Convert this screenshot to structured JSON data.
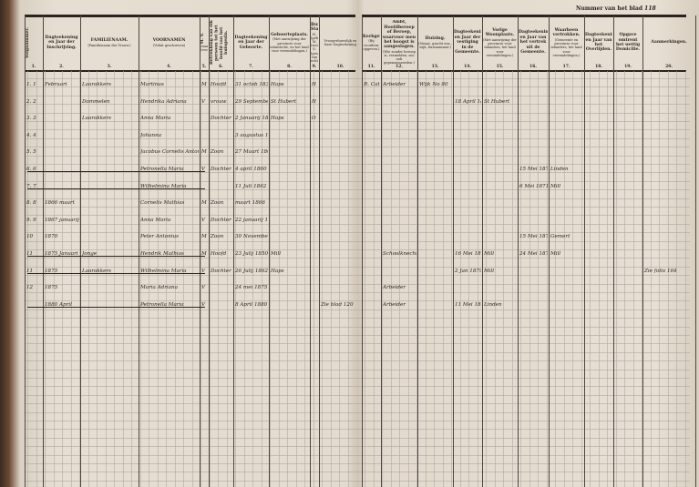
{
  "sheet_number_label": "Nummer van het blad",
  "sheet_number": "118",
  "headers": [
    {
      "n": "1.",
      "title": "Volgnummer.",
      "sub": ""
    },
    {
      "n": "2.",
      "title": "Dagteekening en Jaar der Inschrijving.",
      "sub": ""
    },
    {
      "n": "3.",
      "title": "FAMILIENAAM.",
      "sub": "(Familienaam der Vrouw.)"
    },
    {
      "n": "4.",
      "title": "VOORNAMEN",
      "sub": "(Voluit geschreven)"
    },
    {
      "n": "5.",
      "title": "M. V.",
      "sub": "(mannelijk) (vrouwelijk)"
    },
    {
      "n": "6.",
      "title": "Betrekking van elk persoon tot het hoofd van het huisgezin.",
      "sub": ""
    },
    {
      "n": "7.",
      "title": "Dagteekening en Jaar der Geboorte.",
      "sub": ""
    },
    {
      "n": "8.",
      "title": "Geboorteplaats.",
      "sub": "(Met aanwijzing der provincie voor inlandsche, en het land voor vreemdelingen.)"
    },
    {
      "n": "9.",
      "title": "Burgerlijke Staat.",
      "sub": "H. (gehuwd) W. (weduwnaar) S. (gescheiden van echt)"
    },
    {
      "n": "10.",
      "title": "",
      "sub": "Vroegerhuwelijk en hare Dagteekening"
    },
    {
      "n": "11.",
      "title": "Kerkgenootschap.",
      "sub": "(Bij voorkeur opgeven.)"
    },
    {
      "n": "12.",
      "title": "Ambt, Hoofdberoep of Beroep, waarvoor men het hoogst is aangeslagen.",
      "sub": "(Wie zonder beroep is, vermelden, zoo ook gepensioneerden.)"
    },
    {
      "n": "13.",
      "title": "Huizing.",
      "sub": "(Straat, gracht enz., wijk, huisnummer.)"
    },
    {
      "n": "14.",
      "title": "Dagteekening en Jaar der vestiging in de Gemeente.",
      "sub": ""
    },
    {
      "n": "15.",
      "title": "Vorige Woonplaats.",
      "sub": "(Met aanwijzing der provincie voor inlanders, het land voor vreemdelingen.)"
    },
    {
      "n": "16.",
      "title": "Dagteekening en Jaar van het vertrek uit de Gemeente.",
      "sub": ""
    },
    {
      "n": "17.",
      "title": "Waarheen vertrokken.",
      "sub": "(Gemeente en provincie voor inlanders, het land voor vreemdelingen.)"
    },
    {
      "n": "18.",
      "title": "Dagteekening en Jaar van het Overlijden.",
      "sub": ""
    },
    {
      "n": "19.",
      "title": "Opgave omtrent het wettig Domicilie.",
      "sub": ""
    },
    {
      "n": "20.",
      "title": "Aanmerkingen.",
      "sub": ""
    }
  ],
  "rows": [
    {
      "c": [
        "1. 1",
        "Februari",
        "Laarakkers",
        "Martinus",
        "M",
        "Hoofd",
        "31 octob 1836",
        "Haps",
        "H",
        "",
        "R. Cath",
        "Arbeider",
        "Wijk No 80",
        "",
        "",
        "",
        "",
        "",
        "",
        ""
      ],
      "struck": false
    },
    {
      "c": [
        "2. 2",
        "",
        "Dommelen",
        "Hendrika Adriana",
        "V",
        "vrouw",
        "29 September 1838",
        "St Hubert",
        "H",
        "",
        "",
        "",
        "",
        "18 April 1862",
        "St Hubert",
        "",
        "",
        "",
        "",
        ""
      ],
      "struck": false
    },
    {
      "c": [
        "3. 3",
        "",
        "Laarakkers",
        "Anna Maria",
        "",
        "Dochter",
        "2 Januarij 1865",
        "Haps",
        "O",
        "",
        "",
        "",
        "",
        "",
        "",
        "",
        "",
        "",
        "",
        ""
      ],
      "struck": false
    },
    {
      "c": [
        "4. 4",
        "",
        "",
        "Johanna",
        "",
        "",
        "3 augustus 1866",
        "",
        "",
        "",
        "",
        "",
        "",
        "",
        "",
        "",
        "",
        "",
        "",
        ""
      ],
      "struck": false
    },
    {
      "c": [
        "5. 5",
        "",
        "",
        "Jacobus Cornelis Antonius",
        "M",
        "Zoon",
        "27 Maart 1868",
        "",
        "",
        "",
        "",
        "",
        "",
        "",
        "",
        "",
        "",
        "",
        "",
        ""
      ],
      "struck": false
    },
    {
      "c": [
        "6. 6",
        "",
        "",
        "Petronella Maria",
        "V",
        "Dochter",
        "4 april 1860",
        "",
        "",
        "",
        "",
        "",
        "",
        "",
        "",
        "15 Mei 1878",
        "Linden",
        "",
        "",
        ""
      ],
      "struck": true
    },
    {
      "c": [
        "7. 7",
        "",
        "",
        "Wilhelmina Maria",
        "",
        "",
        "11 Juli 1862",
        "",
        "",
        "",
        "",
        "",
        "",
        "",
        "",
        "6 Mei 1871",
        "Mill",
        "",
        "",
        ""
      ],
      "struck": true
    },
    {
      "c": [
        "8. 8",
        "1866 maart",
        "",
        "Cornelis Mathias",
        "M",
        "Zoon",
        "maart 1866",
        "",
        "",
        "",
        "",
        "",
        "",
        "",
        "",
        "",
        "",
        "",
        "",
        ""
      ],
      "struck": false
    },
    {
      "c": [
        "9. 9",
        "1867 januarij 22",
        "",
        "Anna Maria",
        "V",
        "Dochter",
        "22 januarij 1867",
        "",
        "",
        "",
        "",
        "",
        "",
        "",
        "",
        "",
        "",
        "",
        "",
        ""
      ],
      "struck": false
    },
    {
      "c": [
        "10",
        "1870",
        "",
        "Peter Antonius",
        "M",
        "Zoon",
        "30 November 1870",
        "",
        "",
        "",
        "",
        "",
        "",
        "",
        "",
        "15 Mei 1872",
        "Gemert",
        "",
        "",
        ""
      ],
      "struck": false
    },
    {
      "c": [
        "11",
        "1875 Januari",
        "Jonge",
        "Hendrik Mathias",
        "M",
        "Hoofd",
        "23 Julij 1850",
        "Mill",
        "",
        "",
        "",
        "Schoolknecht",
        "",
        "16 Mei 1878",
        "Mill",
        "24 Mei 1879",
        "Mill",
        "",
        "",
        ""
      ],
      "struck": true
    },
    {
      "c": [
        "11",
        "1875",
        "Laarakkers",
        "Wilhelmina Maria",
        "V",
        "Dochter",
        "26 Julij 1862",
        "Haps",
        "",
        "",
        "",
        "",
        "",
        "2 Jan 1879",
        "Mill",
        "",
        "",
        "",
        "",
        "Zie folio 164"
      ],
      "struck": true
    },
    {
      "c": [
        "12",
        "1875",
        "",
        "Maria Adriana",
        "V",
        "",
        "24 mei 1875",
        "",
        "",
        "",
        "",
        "Arbeider",
        "",
        "",
        "",
        "",
        "",
        "",
        "",
        ""
      ],
      "struck": false
    },
    {
      "c": [
        "",
        "1880 April",
        "",
        "Petronella Maria",
        "V",
        "",
        "8 April 1880",
        "",
        "",
        "Zie blad 120",
        "",
        "Arbeider",
        "",
        "11 Mei 1880",
        "Linden",
        "",
        "",
        "",
        "",
        ""
      ],
      "struck": true
    }
  ]
}
